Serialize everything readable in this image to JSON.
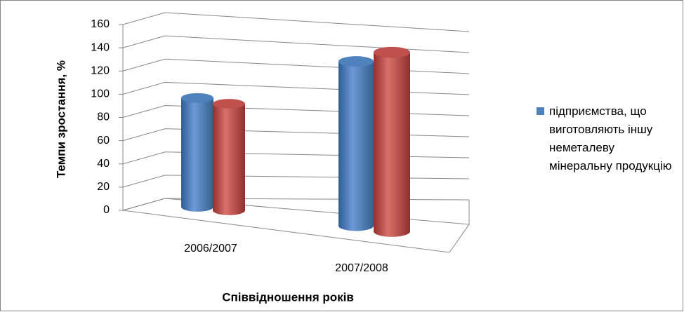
{
  "chart_data": {
    "type": "bar3d",
    "categories": [
      "2006/2007",
      "2007/2008"
    ],
    "series": [
      {
        "name": "підприємства, що виготовляють іншу неметалеву мінеральну продукцію",
        "color": "#4f81bd",
        "values": [
          97,
          126
        ]
      },
      {
        "color": "#c0504d",
        "values": [
          91,
          133
        ]
      }
    ],
    "ylim": [
      0,
      160
    ],
    "yticks": [
      0,
      20,
      40,
      60,
      80,
      100,
      120,
      140,
      160
    ],
    "grid": true,
    "xlabel": "Співвідношення років",
    "ylabel": "Темпи зростання, %",
    "legend": "right"
  }
}
